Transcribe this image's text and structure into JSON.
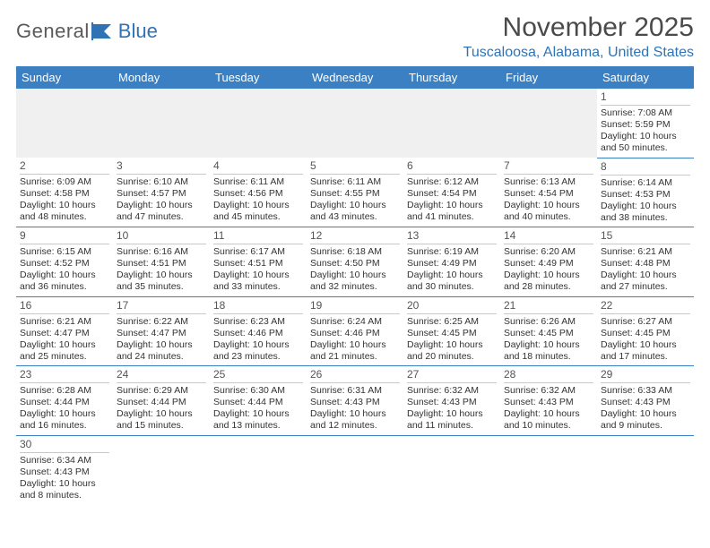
{
  "brand": {
    "general": "General",
    "blue": "Blue"
  },
  "title": "November 2025",
  "location": "Tuscaloosa, Alabama, United States",
  "colors": {
    "header_bg": "#3a80c3",
    "header_text": "#ffffff",
    "accent_blue": "#2f73b5",
    "text": "#333333",
    "muted_bg": "#f0f0f0"
  },
  "weekdays": [
    "Sunday",
    "Monday",
    "Tuesday",
    "Wednesday",
    "Thursday",
    "Friday",
    "Saturday"
  ],
  "days": [
    {
      "n": 1,
      "sr": "7:08 AM",
      "ss": "5:59 PM",
      "dl": "10 hours and 50 minutes."
    },
    {
      "n": 2,
      "sr": "6:09 AM",
      "ss": "4:58 PM",
      "dl": "10 hours and 48 minutes."
    },
    {
      "n": 3,
      "sr": "6:10 AM",
      "ss": "4:57 PM",
      "dl": "10 hours and 47 minutes."
    },
    {
      "n": 4,
      "sr": "6:11 AM",
      "ss": "4:56 PM",
      "dl": "10 hours and 45 minutes."
    },
    {
      "n": 5,
      "sr": "6:11 AM",
      "ss": "4:55 PM",
      "dl": "10 hours and 43 minutes."
    },
    {
      "n": 6,
      "sr": "6:12 AM",
      "ss": "4:54 PM",
      "dl": "10 hours and 41 minutes."
    },
    {
      "n": 7,
      "sr": "6:13 AM",
      "ss": "4:54 PM",
      "dl": "10 hours and 40 minutes."
    },
    {
      "n": 8,
      "sr": "6:14 AM",
      "ss": "4:53 PM",
      "dl": "10 hours and 38 minutes."
    },
    {
      "n": 9,
      "sr": "6:15 AM",
      "ss": "4:52 PM",
      "dl": "10 hours and 36 minutes."
    },
    {
      "n": 10,
      "sr": "6:16 AM",
      "ss": "4:51 PM",
      "dl": "10 hours and 35 minutes."
    },
    {
      "n": 11,
      "sr": "6:17 AM",
      "ss": "4:51 PM",
      "dl": "10 hours and 33 minutes."
    },
    {
      "n": 12,
      "sr": "6:18 AM",
      "ss": "4:50 PM",
      "dl": "10 hours and 32 minutes."
    },
    {
      "n": 13,
      "sr": "6:19 AM",
      "ss": "4:49 PM",
      "dl": "10 hours and 30 minutes."
    },
    {
      "n": 14,
      "sr": "6:20 AM",
      "ss": "4:49 PM",
      "dl": "10 hours and 28 minutes."
    },
    {
      "n": 15,
      "sr": "6:21 AM",
      "ss": "4:48 PM",
      "dl": "10 hours and 27 minutes."
    },
    {
      "n": 16,
      "sr": "6:21 AM",
      "ss": "4:47 PM",
      "dl": "10 hours and 25 minutes."
    },
    {
      "n": 17,
      "sr": "6:22 AM",
      "ss": "4:47 PM",
      "dl": "10 hours and 24 minutes."
    },
    {
      "n": 18,
      "sr": "6:23 AM",
      "ss": "4:46 PM",
      "dl": "10 hours and 23 minutes."
    },
    {
      "n": 19,
      "sr": "6:24 AM",
      "ss": "4:46 PM",
      "dl": "10 hours and 21 minutes."
    },
    {
      "n": 20,
      "sr": "6:25 AM",
      "ss": "4:45 PM",
      "dl": "10 hours and 20 minutes."
    },
    {
      "n": 21,
      "sr": "6:26 AM",
      "ss": "4:45 PM",
      "dl": "10 hours and 18 minutes."
    },
    {
      "n": 22,
      "sr": "6:27 AM",
      "ss": "4:45 PM",
      "dl": "10 hours and 17 minutes."
    },
    {
      "n": 23,
      "sr": "6:28 AM",
      "ss": "4:44 PM",
      "dl": "10 hours and 16 minutes."
    },
    {
      "n": 24,
      "sr": "6:29 AM",
      "ss": "4:44 PM",
      "dl": "10 hours and 15 minutes."
    },
    {
      "n": 25,
      "sr": "6:30 AM",
      "ss": "4:44 PM",
      "dl": "10 hours and 13 minutes."
    },
    {
      "n": 26,
      "sr": "6:31 AM",
      "ss": "4:43 PM",
      "dl": "10 hours and 12 minutes."
    },
    {
      "n": 27,
      "sr": "6:32 AM",
      "ss": "4:43 PM",
      "dl": "10 hours and 11 minutes."
    },
    {
      "n": 28,
      "sr": "6:32 AM",
      "ss": "4:43 PM",
      "dl": "10 hours and 10 minutes."
    },
    {
      "n": 29,
      "sr": "6:33 AM",
      "ss": "4:43 PM",
      "dl": "10 hours and 9 minutes."
    },
    {
      "n": 30,
      "sr": "6:34 AM",
      "ss": "4:43 PM",
      "dl": "10 hours and 8 minutes."
    }
  ],
  "labels": {
    "sunrise": "Sunrise: ",
    "sunset": "Sunset: ",
    "daylight": "Daylight: "
  },
  "layout": {
    "first_weekday_index": 6,
    "columns": 7
  }
}
